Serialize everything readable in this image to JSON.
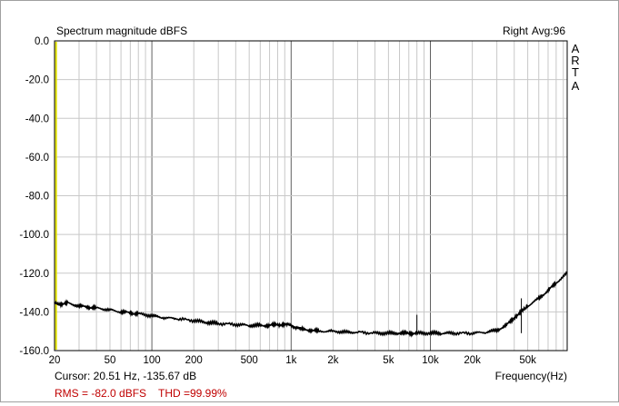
{
  "header": {
    "title": "Spectrum magnitude dBFS",
    "channel": "Right",
    "averages": "Avg:96",
    "brand_letters": [
      "A",
      "R",
      "T",
      "A"
    ]
  },
  "footer": {
    "cursor": "Cursor: 20.51 Hz, -135.67 dB",
    "rms": "RMS =  -82.0 dBFS",
    "thd": "THD =99.99%",
    "rms_color": "#c00000"
  },
  "chart_data": {
    "type": "line",
    "title": "Spectrum magnitude dBFS",
    "xlabel": "Frequency(Hz)",
    "ylabel": "",
    "x_scale": "log",
    "xlim": [
      20,
      96000
    ],
    "ylim": [
      -160,
      0
    ],
    "grid": true,
    "y_ticks": [
      0,
      -20,
      -40,
      -60,
      -80,
      -100,
      -120,
      -140,
      -160
    ],
    "y_tick_labels": [
      "0.0",
      "-20.0",
      "-40.0",
      "-60.0",
      "-80.0",
      "-100.0",
      "-120.0",
      "-140.0",
      "-160.0"
    ],
    "x_ticks": [
      20,
      50,
      100,
      200,
      500,
      1000,
      2000,
      5000,
      10000,
      20000,
      50000
    ],
    "x_tick_labels": [
      "20",
      "50",
      "100",
      "200",
      "500",
      "1k",
      "2k",
      "5k",
      "10k",
      "20k",
      "50k"
    ],
    "line_color": "#000000",
    "cursor_color": "#e0e000",
    "cursor_x": 20.51,
    "series": [
      {
        "x": [
          20,
          22,
          25,
          30,
          35,
          40,
          50,
          60,
          70,
          80,
          100,
          120,
          150,
          200,
          250,
          300,
          400,
          500,
          600,
          700,
          800,
          900,
          1000,
          1100,
          1200,
          1400,
          1600,
          2000,
          2500,
          3000,
          4000,
          5000,
          6000,
          7000,
          8000,
          10000,
          12000,
          15000,
          20000,
          25000,
          30000,
          35000,
          40000,
          45000,
          50000,
          60000,
          70000,
          80000,
          96000
        ],
        "y": [
          -135.5,
          -136,
          -135.5,
          -137,
          -137.5,
          -138,
          -139,
          -140,
          -140.5,
          -141,
          -142,
          -143,
          -143.5,
          -144.5,
          -145.5,
          -146,
          -146.5,
          -147,
          -147,
          -147,
          -146.5,
          -146.5,
          -147,
          -148,
          -149,
          -149.5,
          -150,
          -150,
          -150.5,
          -150.5,
          -151,
          -151,
          -151,
          -151,
          -151,
          -151,
          -151,
          -151,
          -151,
          -150.5,
          -149.5,
          -147,
          -143,
          -140,
          -137,
          -133,
          -129,
          -125,
          -120
        ]
      }
    ],
    "spikes": [
      {
        "x": 8000,
        "y": -141.5
      },
      {
        "x": 45000,
        "y": -133
      }
    ]
  }
}
